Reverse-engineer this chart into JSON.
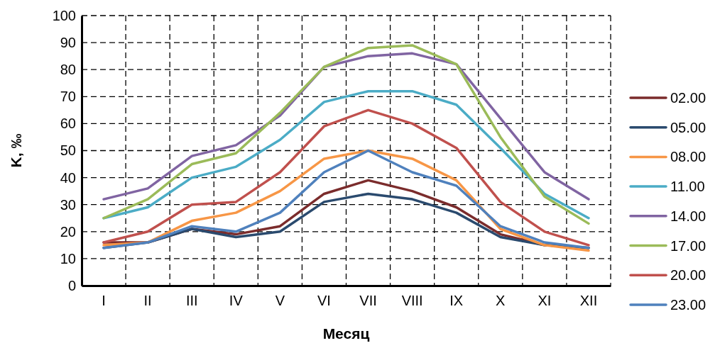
{
  "chart_data": {
    "type": "line",
    "xlabel": "Месяц",
    "ylabel": "K, ‰",
    "categories": [
      "I",
      "II",
      "III",
      "IV",
      "V",
      "VI",
      "VII",
      "VIII",
      "IX",
      "X",
      "XI",
      "XII"
    ],
    "ylim": [
      0,
      100
    ],
    "yticks": [
      0,
      10,
      20,
      30,
      40,
      50,
      60,
      70,
      80,
      90,
      100
    ],
    "grid": true,
    "legend": "right",
    "marker": "none",
    "series": [
      {
        "name": "02.00",
        "color": "#7b2c2c",
        "values": [
          16,
          16,
          21,
          19,
          22,
          34,
          39,
          35,
          29,
          19,
          15,
          14
        ]
      },
      {
        "name": "05.00",
        "color": "#2a4a6e",
        "values": [
          14,
          16,
          21,
          18,
          20,
          31,
          34,
          32,
          27,
          18,
          15,
          14
        ]
      },
      {
        "name": "08.00",
        "color": "#f79646",
        "values": [
          15,
          16,
          24,
          27,
          35,
          47,
          50,
          47,
          39,
          21,
          15,
          13
        ]
      },
      {
        "name": "11.00",
        "color": "#4bacc6",
        "values": [
          25,
          29,
          40,
          44,
          54,
          68,
          72,
          72,
          67,
          51,
          34,
          25
        ]
      },
      {
        "name": "14.00",
        "color": "#8064a2",
        "values": [
          32,
          36,
          48,
          52,
          63,
          81,
          85,
          86,
          82,
          62,
          42,
          32
        ]
      },
      {
        "name": "17.00",
        "color": "#9bbb59",
        "values": [
          25,
          32,
          45,
          49,
          64,
          81,
          88,
          89,
          82,
          55,
          33,
          23
        ]
      },
      {
        "name": "20.00",
        "color": "#c0504d",
        "values": [
          16,
          20,
          30,
          31,
          42,
          59,
          65,
          60,
          51,
          31,
          20,
          15
        ]
      },
      {
        "name": "23.00",
        "color": "#4f81bd",
        "values": [
          14,
          16,
          22,
          20,
          27,
          42,
          50,
          42,
          37,
          22,
          16,
          14
        ]
      }
    ]
  }
}
